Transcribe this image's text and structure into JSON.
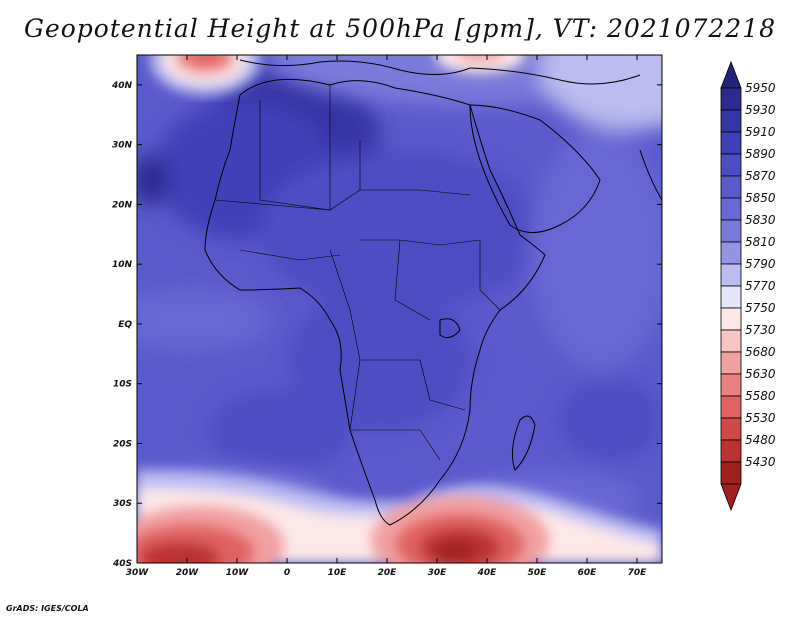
{
  "title": "Geopotential Height at 500hPa [gpm], VT: 2021072218",
  "credit": "GrADS: IGES/COLA",
  "axes": {
    "lon_ticks": [
      "30W",
      "20W",
      "10W",
      "0",
      "10E",
      "20E",
      "30E",
      "40E",
      "50E",
      "60E",
      "70E"
    ],
    "lat_ticks": [
      "40N",
      "30N",
      "20N",
      "10N",
      "EQ",
      "10S",
      "20S",
      "30S",
      "40S"
    ]
  },
  "colorbar": {
    "labels": [
      "5950",
      "5930",
      "5910",
      "5890",
      "5870",
      "5850",
      "5830",
      "5810",
      "5790",
      "5770",
      "5750",
      "5730",
      "5680",
      "5630",
      "5580",
      "5530",
      "5480",
      "5430"
    ],
    "colors": [
      "#2b2b8f",
      "#3535a6",
      "#3f3fb8",
      "#4d4dc4",
      "#5a5acc",
      "#6868d4",
      "#7a7adb",
      "#9494e4",
      "#bcbcf0",
      "#e6e6fa",
      "#fde8e8",
      "#f8c4c4",
      "#f2a0a0",
      "#ec8080",
      "#e06262",
      "#d04848",
      "#bb3232",
      "#a02020"
    ]
  },
  "map_data": {
    "type": "contour-fill",
    "variable": "500hPa geopotential height",
    "units": "gpm",
    "valid_time": "2021072218",
    "lon_range": [
      -30,
      75
    ],
    "lat_range": [
      -40,
      45
    ],
    "region": "Africa"
  }
}
